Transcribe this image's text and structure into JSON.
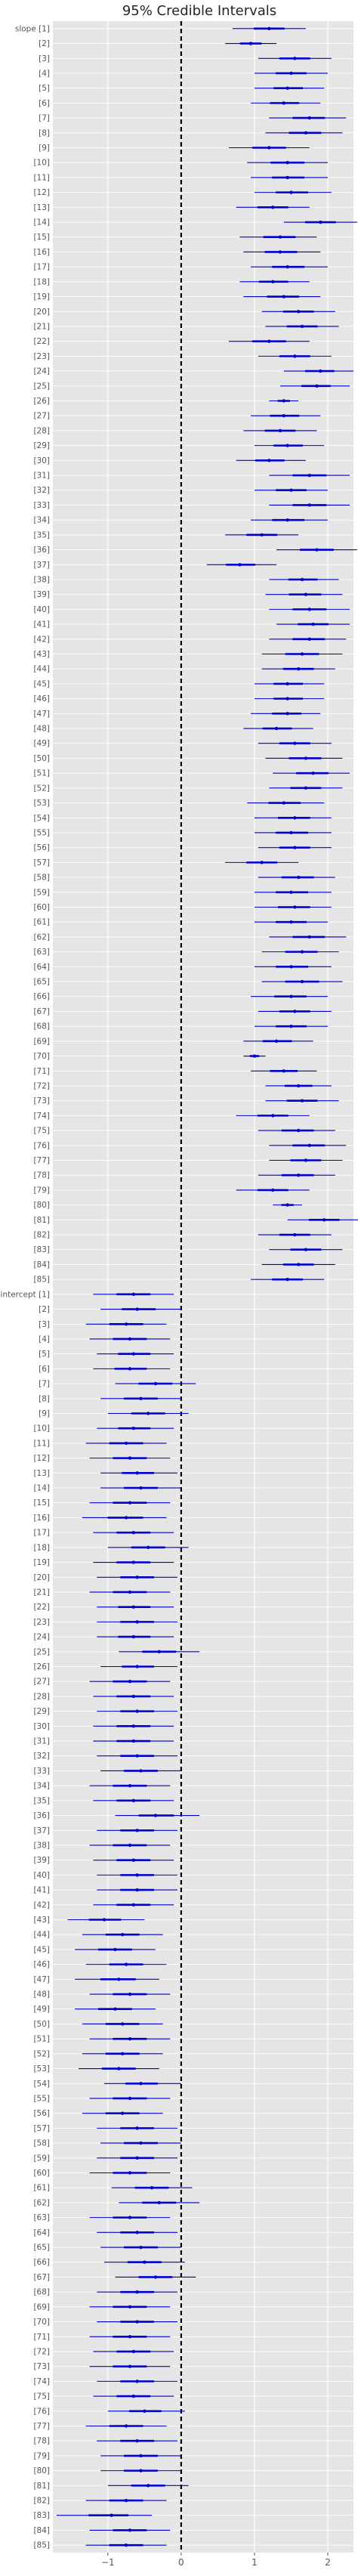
{
  "chart_data": {
    "type": "forest",
    "title": "95% Credible Intervals",
    "xlabel": "",
    "ylabel": "",
    "xlim": [
      -1.75,
      2.35
    ],
    "xticks": [
      -1,
      0,
      1,
      2
    ],
    "xtick_labels": [
      "−1",
      "0",
      "1",
      "2"
    ],
    "reference_line": 0,
    "grid": true,
    "background": "#e5e5e5",
    "mark_color": "#0000cc",
    "reference_color": "#000000",
    "groups": [
      {
        "name": "slope",
        "labels": [
          "slope [1]",
          "[2]",
          "[3]",
          "[4]",
          "[5]",
          "[6]",
          "[7]",
          "[8]",
          "[9]",
          "[10]",
          "[11]",
          "[12]",
          "[13]",
          "[14]",
          "[15]",
          "[16]",
          "[17]",
          "[18]",
          "[19]",
          "[20]",
          "[21]",
          "[22]",
          "[23]",
          "[24]",
          "[25]",
          "[26]",
          "[27]",
          "[28]",
          "[29]",
          "[30]",
          "[31]",
          "[32]",
          "[33]",
          "[34]",
          "[35]",
          "[36]",
          "[37]",
          "[38]",
          "[39]",
          "[40]",
          "[41]",
          "[42]",
          "[43]",
          "[44]",
          "[45]",
          "[46]",
          "[47]",
          "[48]",
          "[49]",
          "[50]",
          "[51]",
          "[52]",
          "[53]",
          "[54]",
          "[55]",
          "[56]",
          "[57]",
          "[58]",
          "[59]",
          "[60]",
          "[61]",
          "[62]",
          "[63]",
          "[64]",
          "[65]",
          "[66]",
          "[67]",
          "[68]",
          "[69]",
          "[70]",
          "[71]",
          "[72]",
          "[73]",
          "[74]",
          "[75]",
          "[76]",
          "[77]",
          "[78]",
          "[79]",
          "[80]",
          "[81]",
          "[82]",
          "[83]",
          "[84]",
          "[85]"
        ],
        "mean": [
          1.2,
          0.95,
          1.55,
          1.5,
          1.45,
          1.4,
          1.75,
          1.7,
          1.2,
          1.45,
          1.45,
          1.5,
          1.25,
          1.9,
          1.35,
          1.35,
          1.45,
          1.25,
          1.4,
          1.6,
          1.65,
          1.2,
          1.55,
          1.9,
          1.85,
          1.4,
          1.4,
          1.35,
          1.45,
          1.2,
          1.75,
          1.5,
          1.75,
          1.45,
          1.1,
          1.85,
          0.8,
          1.65,
          1.7,
          1.75,
          1.8,
          1.75,
          1.65,
          1.6,
          1.45,
          1.45,
          1.45,
          1.3,
          1.55,
          1.7,
          1.8,
          1.7,
          1.4,
          1.55,
          1.5,
          1.55,
          1.1,
          1.6,
          1.5,
          1.55,
          1.5,
          1.75,
          1.65,
          1.5,
          1.65,
          1.5,
          1.55,
          1.5,
          1.3,
          1.0,
          1.4,
          1.6,
          1.65,
          1.25,
          1.6,
          1.75,
          1.7,
          1.6,
          1.25,
          1.45,
          1.95,
          1.55,
          1.7,
          1.6,
          1.45
        ],
        "lower": [
          0.7,
          0.6,
          1.05,
          1.0,
          1.0,
          0.95,
          1.2,
          1.15,
          0.65,
          0.9,
          0.95,
          1.0,
          0.75,
          1.4,
          0.8,
          0.85,
          0.95,
          0.8,
          0.85,
          1.1,
          1.15,
          0.65,
          1.05,
          1.4,
          1.35,
          1.2,
          0.95,
          0.85,
          1.0,
          0.75,
          1.2,
          1.0,
          1.2,
          0.95,
          0.6,
          1.3,
          0.35,
          1.2,
          1.15,
          1.2,
          1.3,
          1.2,
          1.1,
          1.1,
          1.0,
          1.0,
          0.95,
          0.85,
          1.05,
          1.15,
          1.25,
          1.2,
          0.9,
          1.0,
          1.0,
          1.05,
          0.6,
          1.05,
          1.0,
          1.0,
          1.0,
          1.2,
          1.1,
          1.0,
          1.1,
          0.95,
          1.05,
          1.0,
          0.85,
          0.85,
          0.95,
          1.15,
          1.15,
          0.75,
          1.05,
          1.2,
          1.2,
          1.05,
          0.75,
          1.25,
          1.45,
          1.05,
          1.2,
          1.1,
          0.95
        ],
        "upper": [
          1.7,
          1.3,
          2.05,
          2.0,
          1.95,
          1.9,
          2.25,
          2.2,
          1.75,
          2.0,
          2.0,
          2.05,
          1.75,
          2.4,
          1.85,
          1.9,
          2.0,
          1.75,
          1.9,
          2.1,
          2.15,
          1.75,
          2.05,
          2.35,
          2.3,
          1.6,
          1.9,
          1.85,
          1.95,
          1.7,
          2.3,
          2.0,
          2.3,
          2.0,
          1.6,
          2.4,
          1.3,
          2.15,
          2.2,
          2.3,
          2.3,
          2.25,
          2.2,
          2.1,
          1.95,
          1.95,
          1.9,
          1.8,
          2.05,
          2.2,
          2.3,
          2.2,
          1.95,
          2.05,
          2.05,
          2.05,
          1.6,
          2.1,
          2.05,
          2.05,
          2.0,
          2.25,
          2.15,
          2.05,
          2.2,
          2.0,
          2.05,
          2.0,
          1.8,
          1.15,
          1.85,
          2.05,
          2.15,
          1.75,
          2.1,
          2.25,
          2.2,
          2.1,
          1.75,
          1.65,
          2.45,
          2.05,
          2.2,
          2.1,
          1.95
        ]
      },
      {
        "name": "intercept",
        "labels": [
          "intercept [1]",
          "[2]",
          "[3]",
          "[4]",
          "[5]",
          "[6]",
          "[7]",
          "[8]",
          "[9]",
          "[10]",
          "[11]",
          "[12]",
          "[13]",
          "[14]",
          "[15]",
          "[16]",
          "[17]",
          "[18]",
          "[19]",
          "[20]",
          "[21]",
          "[22]",
          "[23]",
          "[24]",
          "[25]",
          "[26]",
          "[27]",
          "[28]",
          "[29]",
          "[30]",
          "[31]",
          "[32]",
          "[33]",
          "[34]",
          "[35]",
          "[36]",
          "[37]",
          "[38]",
          "[39]",
          "[40]",
          "[41]",
          "[42]",
          "[43]",
          "[44]",
          "[45]",
          "[46]",
          "[47]",
          "[48]",
          "[49]",
          "[50]",
          "[51]",
          "[52]",
          "[53]",
          "[54]",
          "[55]",
          "[56]",
          "[57]",
          "[58]",
          "[59]",
          "[60]",
          "[61]",
          "[62]",
          "[63]",
          "[64]",
          "[65]",
          "[66]",
          "[67]",
          "[68]",
          "[69]",
          "[70]",
          "[71]",
          "[72]",
          "[73]",
          "[74]",
          "[75]",
          "[76]",
          "[77]",
          "[78]",
          "[79]",
          "[80]",
          "[81]",
          "[82]",
          "[83]",
          "[84]",
          "[85]"
        ],
        "mean": [
          -0.65,
          -0.6,
          -0.75,
          -0.7,
          -0.65,
          -0.7,
          -0.35,
          -0.55,
          -0.45,
          -0.65,
          -0.75,
          -0.7,
          -0.6,
          -0.55,
          -0.7,
          -0.75,
          -0.65,
          -0.45,
          -0.65,
          -0.6,
          -0.7,
          -0.65,
          -0.6,
          -0.65,
          -0.3,
          -0.6,
          -0.7,
          -0.65,
          -0.6,
          -0.65,
          -0.65,
          -0.6,
          -0.55,
          -0.7,
          -0.65,
          -0.35,
          -0.6,
          -0.7,
          -0.65,
          -0.6,
          -0.6,
          -0.65,
          -1.05,
          -0.8,
          -0.9,
          -0.75,
          -0.85,
          -0.7,
          -0.9,
          -0.8,
          -0.7,
          -0.8,
          -0.85,
          -0.55,
          -0.7,
          -0.8,
          -0.6,
          -0.55,
          -0.6,
          -0.7,
          -0.4,
          -0.3,
          -0.7,
          -0.6,
          -0.55,
          -0.5,
          -0.35,
          -0.6,
          -0.7,
          -0.6,
          -0.7,
          -0.65,
          -0.7,
          -0.6,
          -0.65,
          -0.5,
          -0.75,
          -0.6,
          -0.55,
          -0.55,
          -0.45,
          -0.75,
          -0.95,
          -0.7,
          -0.75
        ],
        "lower": [
          -1.2,
          -1.1,
          -1.3,
          -1.25,
          -1.15,
          -1.2,
          -0.9,
          -1.1,
          -1.0,
          -1.15,
          -1.3,
          -1.25,
          -1.1,
          -1.1,
          -1.25,
          -1.35,
          -1.2,
          -1.0,
          -1.2,
          -1.15,
          -1.25,
          -1.15,
          -1.15,
          -1.15,
          -0.85,
          -1.1,
          -1.25,
          -1.2,
          -1.15,
          -1.2,
          -1.2,
          -1.15,
          -1.1,
          -1.25,
          -1.2,
          -0.9,
          -1.15,
          -1.25,
          -1.2,
          -1.15,
          -1.15,
          -1.2,
          -1.55,
          -1.35,
          -1.45,
          -1.3,
          -1.45,
          -1.25,
          -1.45,
          -1.35,
          -1.25,
          -1.35,
          -1.4,
          -1.05,
          -1.25,
          -1.35,
          -1.15,
          -1.1,
          -1.15,
          -1.25,
          -0.95,
          -0.85,
          -1.25,
          -1.15,
          -1.1,
          -1.05,
          -0.9,
          -1.15,
          -1.25,
          -1.15,
          -1.25,
          -1.2,
          -1.25,
          -1.15,
          -1.2,
          -1.0,
          -1.3,
          -1.15,
          -1.1,
          -1.1,
          -1.0,
          -1.3,
          -1.7,
          -1.25,
          -1.3
        ],
        "upper": [
          -0.1,
          0.0,
          -0.2,
          -0.15,
          -0.1,
          -0.15,
          0.2,
          0.0,
          0.1,
          -0.1,
          -0.2,
          -0.15,
          -0.05,
          0.0,
          -0.15,
          -0.2,
          -0.1,
          0.1,
          -0.1,
          -0.05,
          -0.15,
          -0.1,
          -0.05,
          -0.1,
          0.25,
          -0.05,
          -0.15,
          -0.1,
          -0.05,
          -0.1,
          -0.1,
          -0.05,
          0.0,
          -0.15,
          -0.1,
          0.25,
          -0.05,
          -0.15,
          -0.1,
          -0.05,
          -0.05,
          -0.1,
          -0.5,
          -0.25,
          -0.35,
          -0.2,
          -0.3,
          -0.15,
          -0.35,
          -0.25,
          -0.15,
          -0.25,
          -0.3,
          0.0,
          -0.15,
          -0.25,
          -0.05,
          0.0,
          -0.05,
          -0.15,
          0.15,
          0.25,
          -0.15,
          -0.05,
          0.0,
          0.05,
          0.2,
          -0.05,
          -0.15,
          -0.05,
          -0.15,
          -0.1,
          -0.15,
          -0.05,
          -0.1,
          0.05,
          -0.2,
          -0.05,
          0.0,
          0.0,
          0.1,
          -0.2,
          -0.4,
          -0.15,
          -0.2
        ]
      }
    ]
  }
}
